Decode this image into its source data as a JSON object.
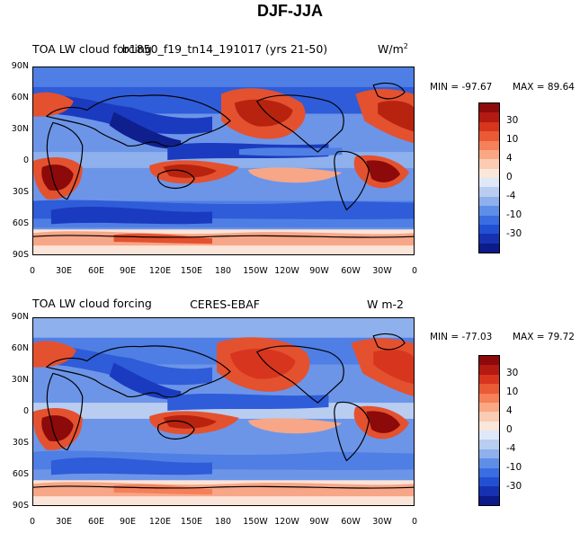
{
  "title": "DJF-JJA",
  "panels": [
    {
      "label_left": "TOA LW cloud forcing",
      "label_center": "b1850_f19_tn14_191017 (yrs 21-50)",
      "units": "W/m",
      "units_sup": "2",
      "min_label": "MIN = -97.67",
      "max_label": "MAX =  89.64"
    },
    {
      "label_left": "TOA LW cloud forcing",
      "label_center": "CERES-EBAF",
      "units": "W m-2",
      "units_sup": "",
      "min_label": "MIN = -77.03",
      "max_label": "MAX =  79.72"
    }
  ],
  "lat_ticks": [
    "90N",
    "60N",
    "30N",
    "0",
    "30S",
    "60S",
    "90S"
  ],
  "lon_ticks": [
    "0",
    "30E",
    "60E",
    "90E",
    "120E",
    "150E",
    "180",
    "150W",
    "120W",
    "90W",
    "60W",
    "30W",
    "0"
  ],
  "colorbar": {
    "colors": [
      "#8c0a0a",
      "#b21a12",
      "#d8351f",
      "#ea5a35",
      "#f5805a",
      "#f9a883",
      "#fbcbb4",
      "#fbe6da",
      "#dfe8f7",
      "#b9cdf1",
      "#8eb0ec",
      "#5f8ee8",
      "#3a6de2",
      "#2150d3",
      "#1632b0",
      "#0c1a8a"
    ],
    "labels": [
      "30",
      "10",
      "4",
      "0",
      "-4",
      "-10",
      "-30"
    ]
  },
  "map_colors": {
    "land": "#ffffff",
    "deep_red": "#b8230f",
    "red": "#e4512f",
    "light_red": "#f7a687",
    "pale": "#fbe4d8",
    "light_blue": "#b8cdf0",
    "blue": "#4f7fe4",
    "deep_blue": "#1a3bbf",
    "navy": "#0f1f8e"
  }
}
